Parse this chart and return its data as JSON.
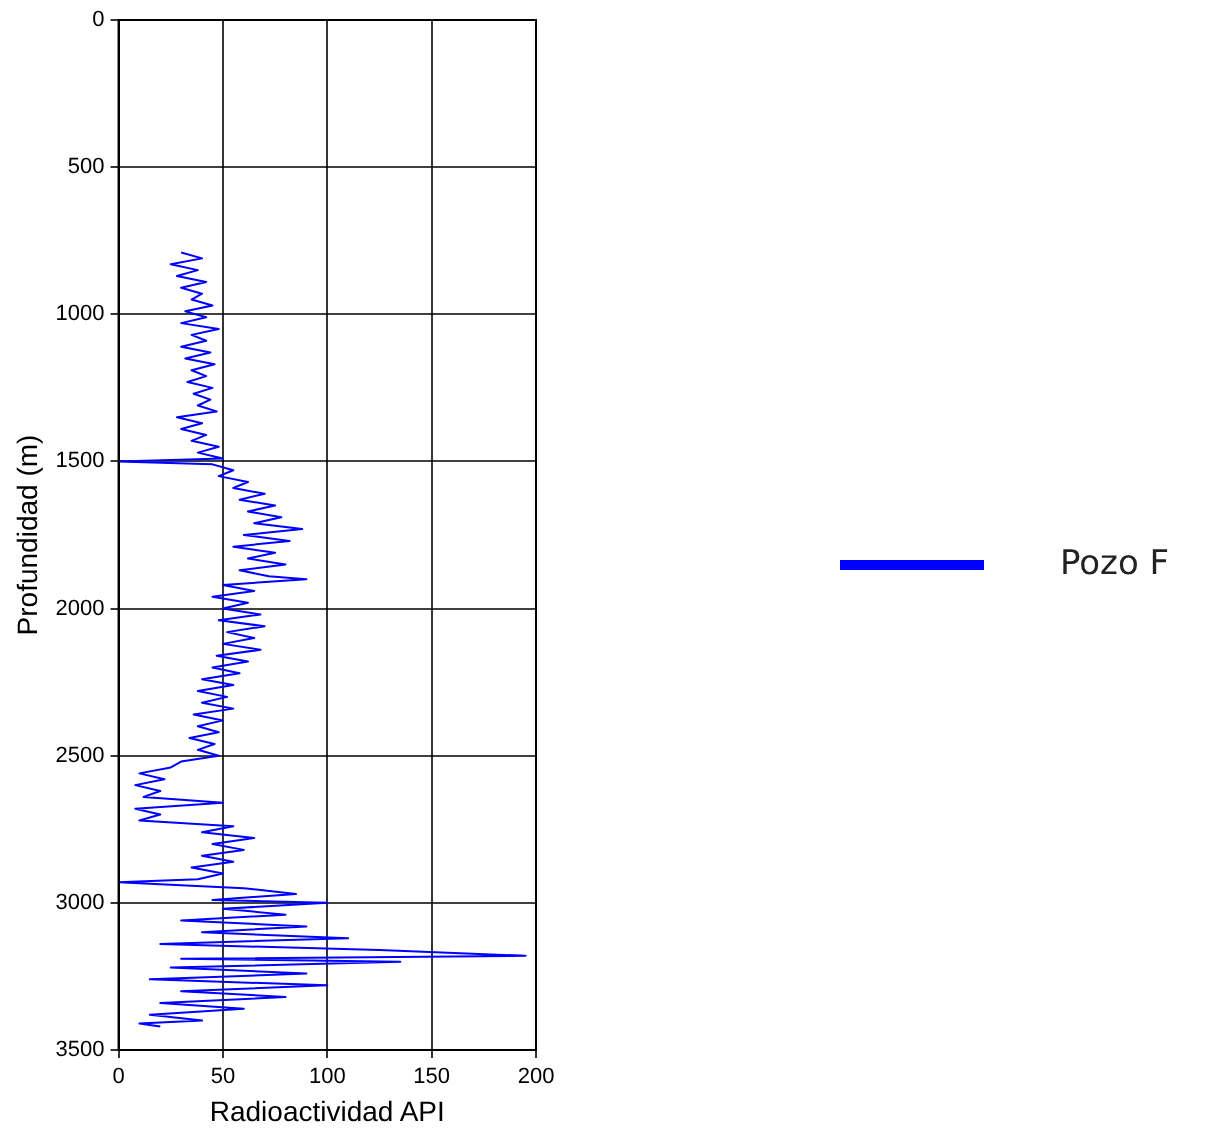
{
  "chart_data": {
    "type": "line",
    "xlabel": "Radioactividad API",
    "ylabel": "Profundidad (m)",
    "xlim": [
      0,
      200
    ],
    "xticks": [
      0,
      50,
      100,
      150,
      200
    ],
    "ylim": [
      3500,
      0
    ],
    "yticks": [
      0,
      500,
      1000,
      1500,
      2000,
      2500,
      3000,
      3500
    ],
    "grid": true,
    "legend": "right",
    "marker": "none",
    "line_style": "solid",
    "series": [
      {
        "name": "Pozo F",
        "color": "#0000ff",
        "x": [
          30,
          40,
          25,
          38,
          28,
          42,
          30,
          40,
          35,
          45,
          32,
          42,
          30,
          48,
          35,
          42,
          30,
          44,
          32,
          46,
          35,
          42,
          33,
          45,
          36,
          44,
          38,
          47,
          28,
          40,
          30,
          42,
          35,
          48,
          38,
          50,
          0,
          45,
          55,
          48,
          62,
          55,
          70,
          58,
          75,
          62,
          78,
          65,
          88,
          60,
          82,
          55,
          75,
          62,
          80,
          58,
          72,
          90,
          50,
          65,
          45,
          62,
          50,
          68,
          48,
          70,
          52,
          65,
          50,
          68,
          47,
          62,
          45,
          58,
          40,
          55,
          38,
          52,
          40,
          55,
          36,
          50,
          38,
          48,
          34,
          46,
          38,
          48,
          30,
          25,
          10,
          22,
          8,
          20,
          12,
          50,
          8,
          20,
          10,
          55,
          40,
          65,
          45,
          60,
          40,
          55,
          35,
          50,
          38,
          0,
          60,
          85,
          45,
          100,
          50,
          80,
          30,
          90,
          40,
          110,
          20,
          125,
          195,
          30,
          135,
          25,
          90,
          15,
          100,
          30,
          80,
          20,
          60,
          15,
          40,
          10,
          20
        ],
        "values": [
          790,
          810,
          830,
          850,
          870,
          890,
          910,
          930,
          950,
          970,
          990,
          1010,
          1030,
          1050,
          1070,
          1090,
          1110,
          1130,
          1150,
          1170,
          1190,
          1210,
          1230,
          1250,
          1270,
          1290,
          1310,
          1330,
          1350,
          1370,
          1390,
          1410,
          1430,
          1450,
          1470,
          1490,
          1500,
          1510,
          1530,
          1550,
          1570,
          1590,
          1610,
          1630,
          1650,
          1670,
          1690,
          1710,
          1730,
          1750,
          1770,
          1790,
          1810,
          1830,
          1850,
          1870,
          1890,
          1900,
          1920,
          1940,
          1960,
          1980,
          2000,
          2020,
          2040,
          2060,
          2080,
          2100,
          2120,
          2140,
          2160,
          2180,
          2200,
          2220,
          2240,
          2260,
          2280,
          2300,
          2320,
          2340,
          2360,
          2380,
          2400,
          2420,
          2440,
          2460,
          2480,
          2500,
          2520,
          2540,
          2560,
          2580,
          2600,
          2620,
          2640,
          2660,
          2680,
          2700,
          2720,
          2740,
          2760,
          2780,
          2800,
          2820,
          2840,
          2860,
          2880,
          2900,
          2920,
          2930,
          2950,
          2970,
          2990,
          3000,
          3020,
          3040,
          3060,
          3080,
          3100,
          3120,
          3140,
          3160,
          3180,
          3190,
          3200,
          3220,
          3240,
          3260,
          3280,
          3300,
          3320,
          3340,
          3360,
          3380,
          3400,
          3410,
          3420
        ]
      }
    ]
  }
}
